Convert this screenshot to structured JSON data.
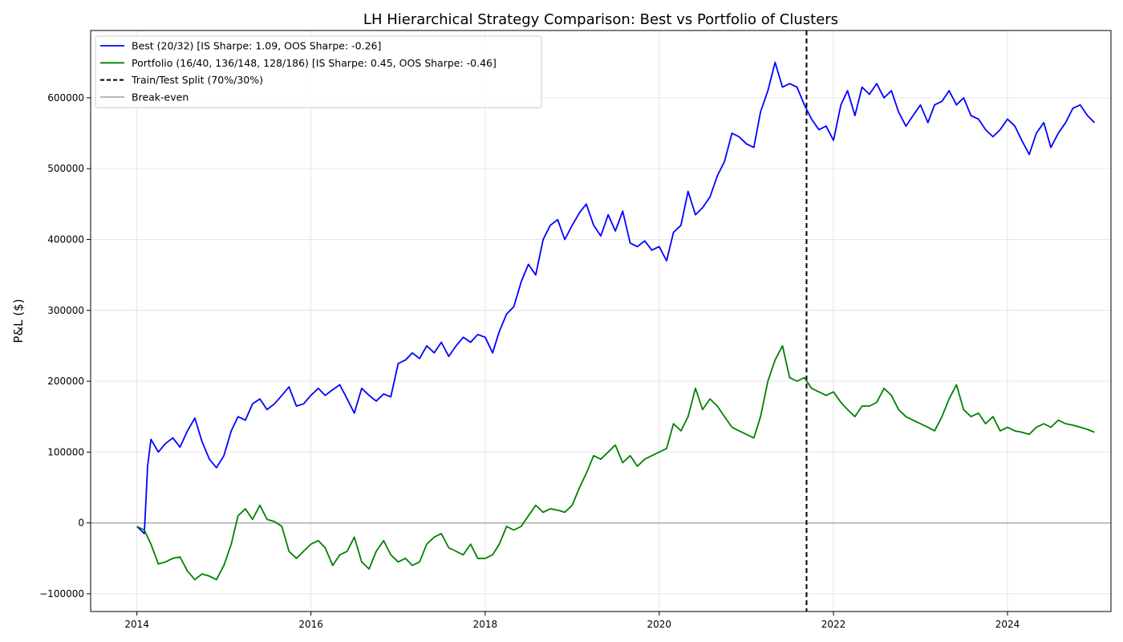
{
  "chart_data": {
    "type": "line",
    "title": "LH Hierarchical Strategy Comparison: Best vs Portfolio of Clusters",
    "xlabel": "",
    "ylabel": "P&L ($)",
    "xlim": [
      "2013-06-21",
      "2025-03-10"
    ],
    "ylim": [
      -125000,
      695000
    ],
    "x_ticks": [
      "2014",
      "2016",
      "2018",
      "2020",
      "2022",
      "2024"
    ],
    "y_ticks": [
      -100000,
      0,
      100000,
      200000,
      300000,
      400000,
      500000,
      600000
    ],
    "y_tick_labels": [
      "−100000",
      "0",
      "100000",
      "200000",
      "300000",
      "400000",
      "500000",
      "600000"
    ],
    "grid": true,
    "legend_position": "top-left",
    "series": [
      {
        "name": "Best (20/32) [IS Sharpe: 1.09, OOS Sharpe: -0.26]",
        "color": "#0000ff",
        "points": [
          [
            "2014-01-01",
            -5000
          ],
          [
            "2014-02-01",
            -15000
          ],
          [
            "2014-02-15",
            80000
          ],
          [
            "2014-03-01",
            118000
          ],
          [
            "2014-04-01",
            100000
          ],
          [
            "2014-05-01",
            112000
          ],
          [
            "2014-06-01",
            120000
          ],
          [
            "2014-07-01",
            107000
          ],
          [
            "2014-08-01",
            130000
          ],
          [
            "2014-09-01",
            148000
          ],
          [
            "2014-10-01",
            115000
          ],
          [
            "2014-11-01",
            90000
          ],
          [
            "2014-12-01",
            78000
          ],
          [
            "2015-01-01",
            95000
          ],
          [
            "2015-02-01",
            130000
          ],
          [
            "2015-03-01",
            150000
          ],
          [
            "2015-04-01",
            145000
          ],
          [
            "2015-05-01",
            168000
          ],
          [
            "2015-06-01",
            175000
          ],
          [
            "2015-07-01",
            160000
          ],
          [
            "2015-08-01",
            168000
          ],
          [
            "2015-09-01",
            180000
          ],
          [
            "2015-10-01",
            192000
          ],
          [
            "2015-11-01",
            165000
          ],
          [
            "2015-12-01",
            168000
          ],
          [
            "2016-01-01",
            180000
          ],
          [
            "2016-02-01",
            190000
          ],
          [
            "2016-03-01",
            180000
          ],
          [
            "2016-04-01",
            188000
          ],
          [
            "2016-05-01",
            195000
          ],
          [
            "2016-06-01",
            175000
          ],
          [
            "2016-07-01",
            155000
          ],
          [
            "2016-08-01",
            190000
          ],
          [
            "2016-09-01",
            180000
          ],
          [
            "2016-10-01",
            172000
          ],
          [
            "2016-11-01",
            182000
          ],
          [
            "2016-12-01",
            178000
          ],
          [
            "2017-01-01",
            225000
          ],
          [
            "2017-02-01",
            230000
          ],
          [
            "2017-03-01",
            240000
          ],
          [
            "2017-04-01",
            232000
          ],
          [
            "2017-05-01",
            250000
          ],
          [
            "2017-06-01",
            240000
          ],
          [
            "2017-07-01",
            255000
          ],
          [
            "2017-08-01",
            235000
          ],
          [
            "2017-09-01",
            250000
          ],
          [
            "2017-10-01",
            262000
          ],
          [
            "2017-11-01",
            255000
          ],
          [
            "2017-12-01",
            266000
          ],
          [
            "2018-01-01",
            262000
          ],
          [
            "2018-02-01",
            240000
          ],
          [
            "2018-03-01",
            270000
          ],
          [
            "2018-04-01",
            295000
          ],
          [
            "2018-05-01",
            305000
          ],
          [
            "2018-06-01",
            340000
          ],
          [
            "2018-07-01",
            365000
          ],
          [
            "2018-08-01",
            350000
          ],
          [
            "2018-09-01",
            400000
          ],
          [
            "2018-10-01",
            420000
          ],
          [
            "2018-11-01",
            428000
          ],
          [
            "2018-12-01",
            400000
          ],
          [
            "2019-01-01",
            420000
          ],
          [
            "2019-02-01",
            438000
          ],
          [
            "2019-03-01",
            450000
          ],
          [
            "2019-04-01",
            420000
          ],
          [
            "2019-05-01",
            405000
          ],
          [
            "2019-06-01",
            435000
          ],
          [
            "2019-07-01",
            412000
          ],
          [
            "2019-08-01",
            440000
          ],
          [
            "2019-09-01",
            395000
          ],
          [
            "2019-10-01",
            390000
          ],
          [
            "2019-11-01",
            398000
          ],
          [
            "2019-12-01",
            385000
          ],
          [
            "2020-01-01",
            390000
          ],
          [
            "2020-02-01",
            370000
          ],
          [
            "2020-03-01",
            410000
          ],
          [
            "2020-04-01",
            420000
          ],
          [
            "2020-05-01",
            468000
          ],
          [
            "2020-06-01",
            435000
          ],
          [
            "2020-07-01",
            445000
          ],
          [
            "2020-08-01",
            460000
          ],
          [
            "2020-09-01",
            490000
          ],
          [
            "2020-10-01",
            510000
          ],
          [
            "2020-11-01",
            550000
          ],
          [
            "2020-12-01",
            545000
          ],
          [
            "2021-01-01",
            535000
          ],
          [
            "2021-02-01",
            530000
          ],
          [
            "2021-03-01",
            580000
          ],
          [
            "2021-04-01",
            610000
          ],
          [
            "2021-05-01",
            650000
          ],
          [
            "2021-06-01",
            615000
          ],
          [
            "2021-07-01",
            620000
          ],
          [
            "2021-08-01",
            615000
          ],
          [
            "2021-09-01",
            590000
          ],
          [
            "2021-10-01",
            570000
          ],
          [
            "2021-11-01",
            555000
          ],
          [
            "2021-12-01",
            560000
          ],
          [
            "2022-01-01",
            540000
          ],
          [
            "2022-02-01",
            590000
          ],
          [
            "2022-03-01",
            610000
          ],
          [
            "2022-04-01",
            575000
          ],
          [
            "2022-05-01",
            615000
          ],
          [
            "2022-06-01",
            605000
          ],
          [
            "2022-07-01",
            620000
          ],
          [
            "2022-08-01",
            600000
          ],
          [
            "2022-09-01",
            610000
          ],
          [
            "2022-10-01",
            580000
          ],
          [
            "2022-11-01",
            560000
          ],
          [
            "2022-12-01",
            575000
          ],
          [
            "2023-01-01",
            590000
          ],
          [
            "2023-02-01",
            565000
          ],
          [
            "2023-03-01",
            590000
          ],
          [
            "2023-04-01",
            595000
          ],
          [
            "2023-05-01",
            610000
          ],
          [
            "2023-06-01",
            590000
          ],
          [
            "2023-07-01",
            600000
          ],
          [
            "2023-08-01",
            575000
          ],
          [
            "2023-09-01",
            570000
          ],
          [
            "2023-10-01",
            555000
          ],
          [
            "2023-11-01",
            545000
          ],
          [
            "2023-12-01",
            555000
          ],
          [
            "2024-01-01",
            570000
          ],
          [
            "2024-02-01",
            560000
          ],
          [
            "2024-03-01",
            540000
          ],
          [
            "2024-04-01",
            520000
          ],
          [
            "2024-05-01",
            550000
          ],
          [
            "2024-06-01",
            565000
          ],
          [
            "2024-07-01",
            530000
          ],
          [
            "2024-08-01",
            550000
          ],
          [
            "2024-09-01",
            565000
          ],
          [
            "2024-10-01",
            585000
          ],
          [
            "2024-11-01",
            590000
          ],
          [
            "2024-12-01",
            575000
          ],
          [
            "2024-12-31",
            565000
          ]
        ]
      },
      {
        "name": "Portfolio (16/40, 136/148, 128/186) [IS Sharpe: 0.45, OOS Sharpe: -0.46]",
        "color": "#008000",
        "points": [
          [
            "2014-01-01",
            -5000
          ],
          [
            "2014-02-01",
            -10000
          ],
          [
            "2014-03-01",
            -30000
          ],
          [
            "2014-04-01",
            -58000
          ],
          [
            "2014-05-01",
            -55000
          ],
          [
            "2014-06-01",
            -50000
          ],
          [
            "2014-07-01",
            -48000
          ],
          [
            "2014-08-01",
            -68000
          ],
          [
            "2014-09-01",
            -80000
          ],
          [
            "2014-10-01",
            -72000
          ],
          [
            "2014-11-01",
            -75000
          ],
          [
            "2014-12-01",
            -80000
          ],
          [
            "2015-01-01",
            -60000
          ],
          [
            "2015-02-01",
            -30000
          ],
          [
            "2015-03-01",
            10000
          ],
          [
            "2015-04-01",
            20000
          ],
          [
            "2015-05-01",
            5000
          ],
          [
            "2015-06-01",
            25000
          ],
          [
            "2015-07-01",
            5000
          ],
          [
            "2015-08-01",
            2000
          ],
          [
            "2015-09-01",
            -5000
          ],
          [
            "2015-10-01",
            -40000
          ],
          [
            "2015-11-01",
            -50000
          ],
          [
            "2015-12-01",
            -40000
          ],
          [
            "2016-01-01",
            -30000
          ],
          [
            "2016-02-01",
            -25000
          ],
          [
            "2016-03-01",
            -35000
          ],
          [
            "2016-04-01",
            -60000
          ],
          [
            "2016-05-01",
            -45000
          ],
          [
            "2016-06-01",
            -40000
          ],
          [
            "2016-07-01",
            -20000
          ],
          [
            "2016-08-01",
            -55000
          ],
          [
            "2016-09-01",
            -65000
          ],
          [
            "2016-10-01",
            -40000
          ],
          [
            "2016-11-01",
            -25000
          ],
          [
            "2016-12-01",
            -45000
          ],
          [
            "2017-01-01",
            -55000
          ],
          [
            "2017-02-01",
            -50000
          ],
          [
            "2017-03-01",
            -60000
          ],
          [
            "2017-04-01",
            -55000
          ],
          [
            "2017-05-01",
            -30000
          ],
          [
            "2017-06-01",
            -20000
          ],
          [
            "2017-07-01",
            -15000
          ],
          [
            "2017-08-01",
            -35000
          ],
          [
            "2017-09-01",
            -40000
          ],
          [
            "2017-10-01",
            -45000
          ],
          [
            "2017-11-01",
            -30000
          ],
          [
            "2017-12-01",
            -50000
          ],
          [
            "2018-01-01",
            -50000
          ],
          [
            "2018-02-01",
            -45000
          ],
          [
            "2018-03-01",
            -30000
          ],
          [
            "2018-04-01",
            -5000
          ],
          [
            "2018-05-01",
            -10000
          ],
          [
            "2018-06-01",
            -5000
          ],
          [
            "2018-07-01",
            10000
          ],
          [
            "2018-08-01",
            25000
          ],
          [
            "2018-09-01",
            15000
          ],
          [
            "2018-10-01",
            20000
          ],
          [
            "2018-11-01",
            18000
          ],
          [
            "2018-12-01",
            15000
          ],
          [
            "2019-01-01",
            25000
          ],
          [
            "2019-02-01",
            50000
          ],
          [
            "2019-03-01",
            70000
          ],
          [
            "2019-04-01",
            95000
          ],
          [
            "2019-05-01",
            90000
          ],
          [
            "2019-06-01",
            100000
          ],
          [
            "2019-07-01",
            110000
          ],
          [
            "2019-08-01",
            85000
          ],
          [
            "2019-09-01",
            95000
          ],
          [
            "2019-10-01",
            80000
          ],
          [
            "2019-11-01",
            90000
          ],
          [
            "2019-12-01",
            95000
          ],
          [
            "2020-01-01",
            100000
          ],
          [
            "2020-02-01",
            105000
          ],
          [
            "2020-03-01",
            140000
          ],
          [
            "2020-04-01",
            130000
          ],
          [
            "2020-05-01",
            150000
          ],
          [
            "2020-06-01",
            190000
          ],
          [
            "2020-07-01",
            160000
          ],
          [
            "2020-08-01",
            175000
          ],
          [
            "2020-09-01",
            165000
          ],
          [
            "2020-10-01",
            150000
          ],
          [
            "2020-11-01",
            135000
          ],
          [
            "2020-12-01",
            130000
          ],
          [
            "2021-01-01",
            125000
          ],
          [
            "2021-02-01",
            120000
          ],
          [
            "2021-03-01",
            150000
          ],
          [
            "2021-04-01",
            200000
          ],
          [
            "2021-05-01",
            230000
          ],
          [
            "2021-06-01",
            250000
          ],
          [
            "2021-07-01",
            205000
          ],
          [
            "2021-08-01",
            200000
          ],
          [
            "2021-09-01",
            205000
          ],
          [
            "2021-10-01",
            190000
          ],
          [
            "2021-11-01",
            185000
          ],
          [
            "2021-12-01",
            180000
          ],
          [
            "2022-01-01",
            185000
          ],
          [
            "2022-02-01",
            170000
          ],
          [
            "2022-03-01",
            160000
          ],
          [
            "2022-04-01",
            150000
          ],
          [
            "2022-05-01",
            165000
          ],
          [
            "2022-06-01",
            165000
          ],
          [
            "2022-07-01",
            170000
          ],
          [
            "2022-08-01",
            190000
          ],
          [
            "2022-09-01",
            180000
          ],
          [
            "2022-10-01",
            160000
          ],
          [
            "2022-11-01",
            150000
          ],
          [
            "2022-12-01",
            145000
          ],
          [
            "2023-01-01",
            140000
          ],
          [
            "2023-02-01",
            135000
          ],
          [
            "2023-03-01",
            130000
          ],
          [
            "2023-04-01",
            150000
          ],
          [
            "2023-05-01",
            175000
          ],
          [
            "2023-06-01",
            195000
          ],
          [
            "2023-07-01",
            160000
          ],
          [
            "2023-08-01",
            150000
          ],
          [
            "2023-09-01",
            155000
          ],
          [
            "2023-10-01",
            140000
          ],
          [
            "2023-11-01",
            150000
          ],
          [
            "2023-12-01",
            130000
          ],
          [
            "2024-01-01",
            135000
          ],
          [
            "2024-02-01",
            130000
          ],
          [
            "2024-03-01",
            128000
          ],
          [
            "2024-04-01",
            125000
          ],
          [
            "2024-05-01",
            135000
          ],
          [
            "2024-06-01",
            140000
          ],
          [
            "2024-07-01",
            135000
          ],
          [
            "2024-08-01",
            145000
          ],
          [
            "2024-09-01",
            140000
          ],
          [
            "2024-10-01",
            138000
          ],
          [
            "2024-11-01",
            135000
          ],
          [
            "2024-12-01",
            132000
          ],
          [
            "2024-12-31",
            128000
          ]
        ]
      }
    ],
    "split_line": {
      "name": "Train/Test Split (70%/30%)",
      "x": "2021-09-10",
      "color": "#000000",
      "style": "dashed"
    },
    "reference_line": {
      "name": "Break-even",
      "y": 0,
      "color": "#a9a9a9"
    }
  }
}
